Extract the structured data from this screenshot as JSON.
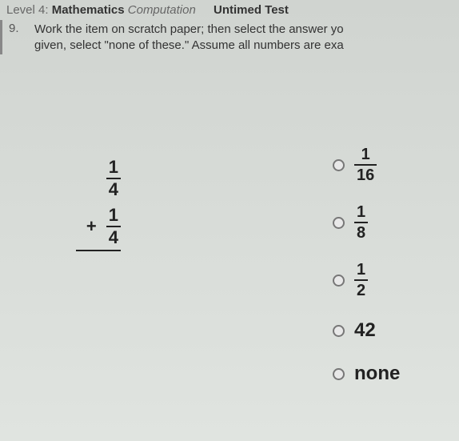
{
  "header": {
    "level_label": "Level 4:",
    "subject": "Mathematics",
    "topic": "Computation",
    "test_type": "Untimed Test"
  },
  "question": {
    "number": "9.",
    "line1": "Work the item on scratch paper; then select the answer yo",
    "line2": "given, select \"none of these.\" Assume all numbers are exa"
  },
  "problem": {
    "operator": "+",
    "addend1": {
      "num": "1",
      "den": "4"
    },
    "addend2": {
      "num": "1",
      "den": "4"
    }
  },
  "answers": {
    "a": {
      "num": "1",
      "den": "16"
    },
    "b": {
      "num": "1",
      "den": "8"
    },
    "c": {
      "num": "1",
      "den": "2"
    },
    "d": "42",
    "e": "none"
  },
  "colors": {
    "text": "#333333",
    "bold_text": "#222222",
    "background_top": "#d0d4d0",
    "background_bottom": "#e0e4e0",
    "radio_border": "#777777"
  }
}
